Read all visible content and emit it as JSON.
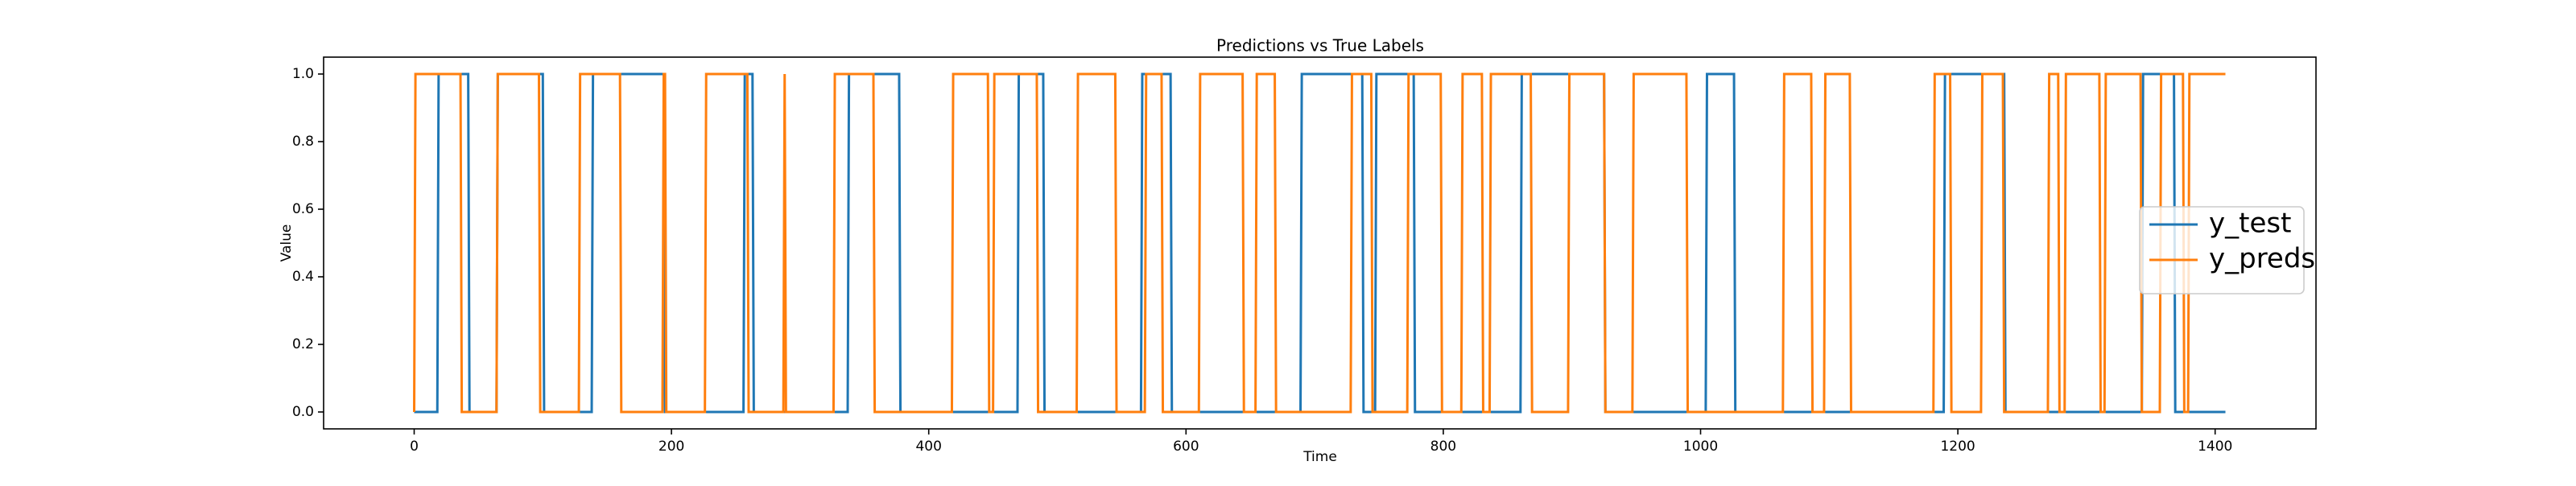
{
  "chart_data": {
    "type": "line",
    "title": "Predictions vs True Labels",
    "xlabel": "Time",
    "ylabel": "Value",
    "xlim": [
      -70.4,
      1478.4
    ],
    "xticks": [
      0,
      200,
      400,
      600,
      800,
      1000,
      1200,
      1400
    ],
    "ylim": [
      -0.05,
      1.05
    ],
    "yticks": [
      {
        "value": 0,
        "label": "0.0"
      },
      {
        "value": 0.2,
        "label": "0.2"
      },
      {
        "value": 0.4,
        "label": "0.4"
      },
      {
        "value": 0.6,
        "label": "0.6"
      },
      {
        "value": 0.8,
        "label": "0.8"
      },
      {
        "value": 1,
        "label": "1.0"
      }
    ],
    "legend": "right",
    "series": [
      {
        "name": "y_test",
        "color": "#1f77b4",
        "x": [
          0,
          18,
          19,
          42,
          43,
          64,
          65,
          100,
          101,
          138,
          139,
          194,
          195,
          256,
          257,
          263,
          264,
          337,
          338,
          377,
          378,
          469,
          470,
          489,
          490,
          565,
          566,
          588,
          589,
          689,
          690,
          737,
          738,
          747,
          748,
          777,
          778,
          860,
          861,
          925,
          926,
          1004,
          1005,
          1026,
          1027,
          1189,
          1190,
          1236,
          1237,
          1343,
          1344,
          1368,
          1369,
          1408
        ],
        "values": [
          0,
          0,
          1,
          1,
          0,
          0,
          1,
          1,
          0,
          0,
          1,
          1,
          0,
          0,
          1,
          1,
          0,
          0,
          1,
          1,
          0,
          0,
          1,
          1,
          0,
          0,
          1,
          1,
          0,
          0,
          1,
          1,
          0,
          0,
          1,
          1,
          0,
          0,
          1,
          1,
          0,
          0,
          1,
          1,
          0,
          0,
          1,
          1,
          0,
          0,
          1,
          1,
          0,
          0
        ]
      },
      {
        "name": "y_preds",
        "color": "#ff7f0e",
        "x": [
          0,
          1,
          36,
          37,
          64,
          65,
          97,
          98,
          128,
          129,
          160,
          161,
          193,
          194,
          195,
          196,
          226,
          227,
          259,
          260,
          287,
          288,
          288,
          289,
          326,
          327,
          357,
          358,
          418,
          419,
          446,
          447,
          450,
          451,
          484,
          485,
          515,
          516,
          545,
          546,
          568,
          569,
          581,
          582,
          610,
          611,
          644,
          645,
          654,
          655,
          669,
          670,
          728,
          729,
          744,
          745,
          772,
          773,
          798,
          799,
          814,
          815,
          830,
          831,
          836,
          837,
          868,
          869,
          897,
          898,
          925,
          926,
          947,
          948,
          989,
          990,
          1064,
          1065,
          1086,
          1087,
          1096,
          1097,
          1116,
          1117,
          1181,
          1182,
          1194,
          1195,
          1218,
          1219,
          1235,
          1236,
          1270,
          1271,
          1278,
          1279,
          1283,
          1284,
          1310,
          1311,
          1314,
          1315,
          1342,
          1343,
          1357,
          1358,
          1375,
          1376,
          1379,
          1380,
          1408
        ],
        "values": [
          0,
          1,
          1,
          0,
          0,
          1,
          1,
          0,
          0,
          1,
          1,
          0,
          0,
          1,
          1,
          0,
          0,
          1,
          1,
          0,
          0,
          1,
          1,
          0,
          0,
          1,
          1,
          0,
          0,
          1,
          1,
          0,
          0,
          1,
          1,
          0,
          0,
          1,
          1,
          0,
          0,
          1,
          1,
          0,
          0,
          1,
          1,
          0,
          0,
          1,
          1,
          0,
          0,
          1,
          1,
          0,
          0,
          1,
          1,
          0,
          0,
          1,
          1,
          0,
          0,
          1,
          1,
          0,
          0,
          1,
          1,
          0,
          0,
          1,
          1,
          0,
          0,
          1,
          1,
          0,
          0,
          1,
          1,
          0,
          0,
          1,
          1,
          0,
          0,
          1,
          1,
          0,
          0,
          1,
          1,
          0,
          0,
          1,
          1,
          0,
          0,
          1,
          1,
          0,
          0,
          1,
          1,
          0,
          0,
          1,
          1
        ]
      }
    ]
  }
}
